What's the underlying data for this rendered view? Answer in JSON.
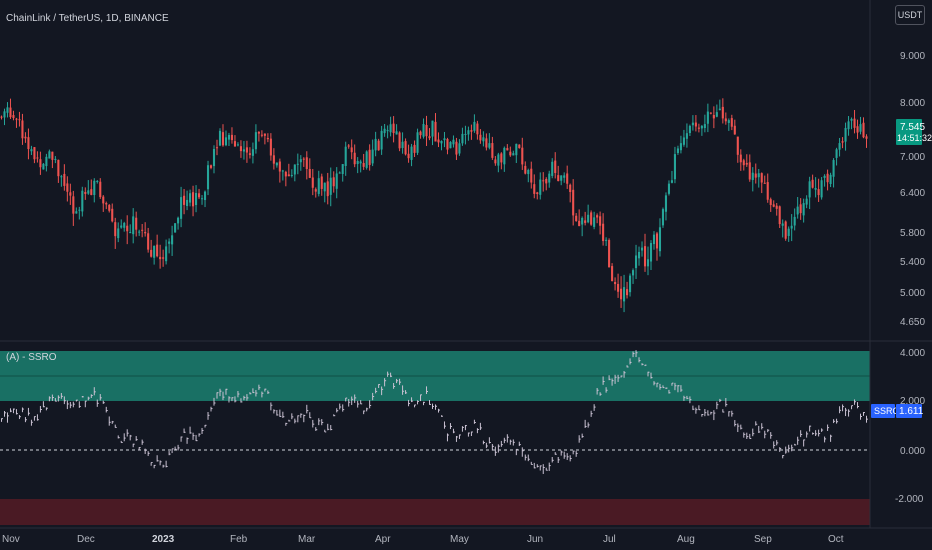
{
  "header": {
    "title": "ChainLink / TetherUS, 1D, BINANCE",
    "currency": "USDT"
  },
  "indicator": {
    "title": "(A) - SSRO",
    "tag_name": "SSRO",
    "tag_value": "1.611"
  },
  "colors": {
    "background": "#131722",
    "up": "#26a69a",
    "down": "#ef5350",
    "upper_zone": "#1b7a6b",
    "lower_zone": "#4a1a24",
    "oscillator": "#c9c1d2",
    "price_tag": "#089981",
    "ssro_tag": "#2962ff"
  },
  "chart_data": [
    {
      "type": "candlestick",
      "title": "ChainLink / TetherUS, 1D, BINANCE",
      "current_price": "7.545",
      "countdown": "14:51:32",
      "y_ticks": [
        "9.000",
        "8.000",
        "7.000",
        "6.400",
        "5.800",
        "5.400",
        "5.000",
        "4.650"
      ],
      "x_ticks": [
        "Nov",
        "Dec",
        "2023",
        "Feb",
        "Mar",
        "Apr",
        "May",
        "Jun",
        "Jul",
        "Aug",
        "Sep",
        "Oct"
      ],
      "x": [
        "Nov",
        "Dec",
        "2023",
        "Feb",
        "Mar",
        "Apr",
        "May",
        "Jun",
        "Jul",
        "Aug",
        "Sep",
        "Oct"
      ],
      "close_anchors": [
        7.7,
        6.4,
        5.7,
        7.3,
        6.6,
        7.3,
        7.3,
        6.6,
        5.2,
        7.8,
        6.0,
        7.6
      ],
      "ylim": [
        4.6,
        9.5
      ],
      "scale": "log"
    },
    {
      "type": "line",
      "title": "(A) - SSRO",
      "last_value": 1.611,
      "y_ticks": [
        "4.000",
        "2.000",
        "0.000",
        "-2.000"
      ],
      "x": [
        "Nov",
        "Dec",
        "2023",
        "Feb",
        "Mar",
        "Apr",
        "May",
        "Jun",
        "Jul",
        "Aug",
        "Sep",
        "Oct"
      ],
      "values": [
        1.2,
        2.0,
        -0.5,
        2.2,
        1.0,
        2.5,
        0.5,
        -0.8,
        3.5,
        1.5,
        0.1,
        1.6
      ],
      "levels": {
        "upper_zone": [
          2.0,
          4.0
        ],
        "upper_mid": 3.0,
        "zero": 0.0,
        "lower_zone": [
          -3.0,
          -2.0
        ]
      },
      "ylim": [
        -3.2,
        4.2
      ]
    }
  ]
}
